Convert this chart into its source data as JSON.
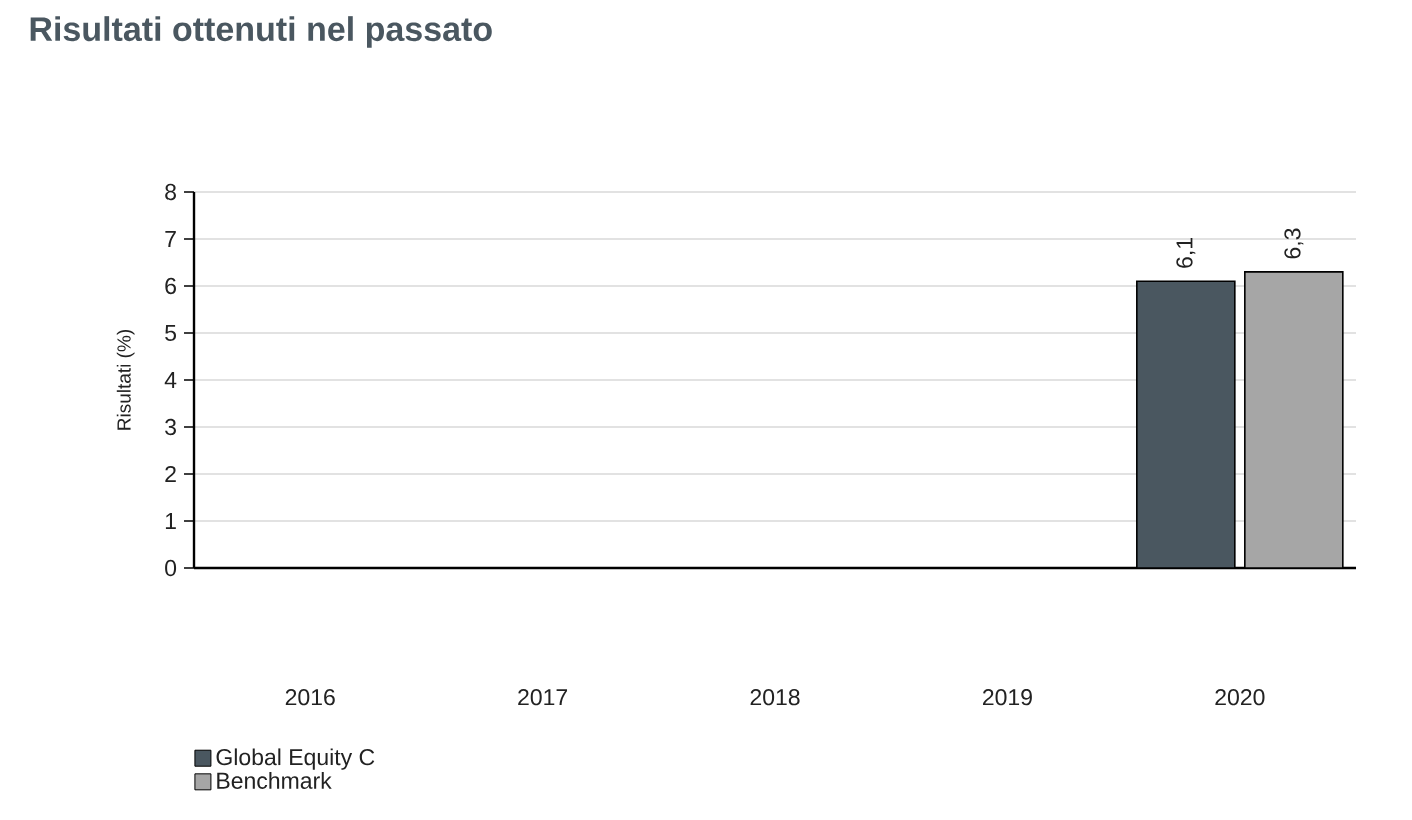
{
  "chart_data": {
    "type": "bar",
    "title": "Risultati ottenuti nel passato",
    "ylabel": "Risultati (%)",
    "categories": [
      "2016",
      "2017",
      "2018",
      "2019",
      "2020"
    ],
    "series": [
      {
        "name": "Global Equity C",
        "color": "#4a5760",
        "values": [
          null,
          null,
          null,
          null,
          6.1
        ],
        "value_labels": [
          null,
          null,
          null,
          null,
          "6,1"
        ]
      },
      {
        "name": "Benchmark",
        "color": "#a6a6a6",
        "values": [
          null,
          null,
          null,
          null,
          6.3
        ],
        "value_labels": [
          null,
          null,
          null,
          null,
          "6,3"
        ]
      }
    ],
    "ylim": [
      0,
      8
    ],
    "yticks": [
      0,
      1,
      2,
      3,
      4,
      5,
      6,
      7,
      8
    ],
    "grid": "y",
    "legend": "bottom left"
  }
}
